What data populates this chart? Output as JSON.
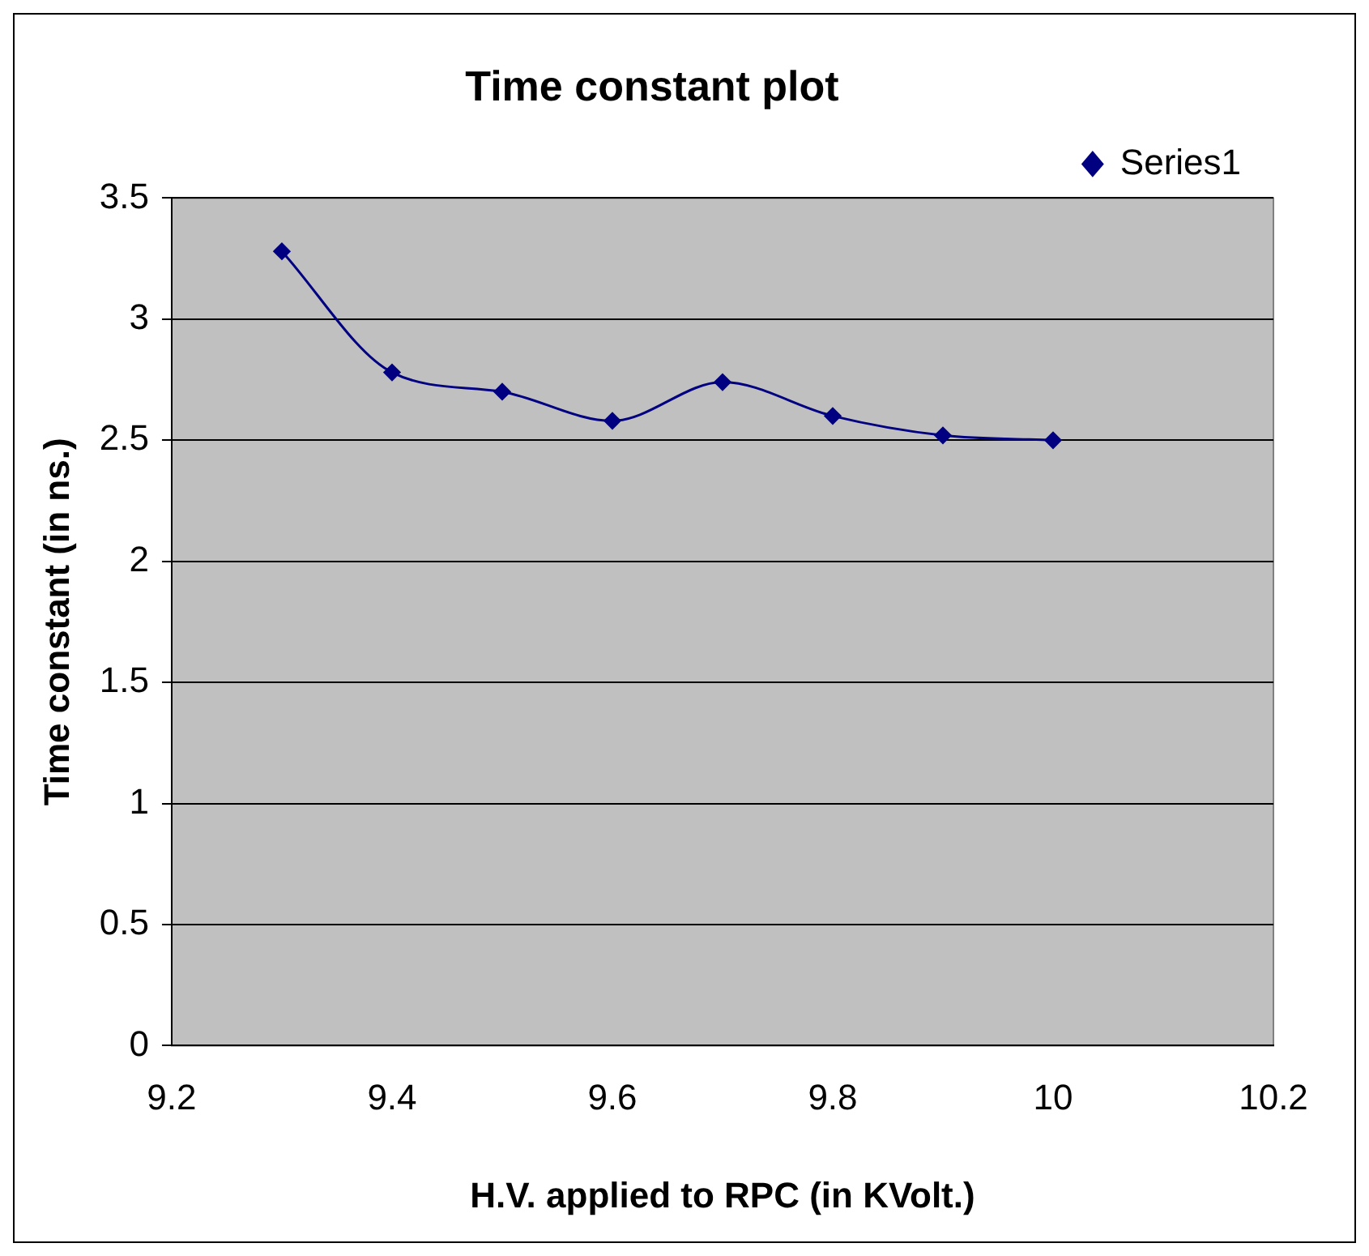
{
  "chart_data": {
    "type": "line",
    "title": "Time constant plot",
    "xlabel": "H.V. applied to RPC (in KVolt.)",
    "ylabel": "Time constant (in ns.)",
    "x": [
      9.3,
      9.4,
      9.5,
      9.6,
      9.7,
      9.8,
      9.9,
      10
    ],
    "series": [
      {
        "name": "Series1",
        "color": "#000080",
        "values": [
          3.28,
          2.78,
          2.7,
          2.58,
          2.74,
          2.6,
          2.52,
          2.5
        ]
      }
    ],
    "xlim": [
      9.2,
      10.2
    ],
    "xticks": [
      9.2,
      9.4,
      9.6,
      9.8,
      10,
      10.2
    ],
    "ylim": [
      0,
      3.5
    ],
    "yticks": [
      0,
      0.5,
      1,
      1.5,
      2,
      2.5,
      3,
      3.5
    ],
    "grid": "y",
    "legend": "top right",
    "marker": "diamond",
    "line_style": "solid"
  }
}
